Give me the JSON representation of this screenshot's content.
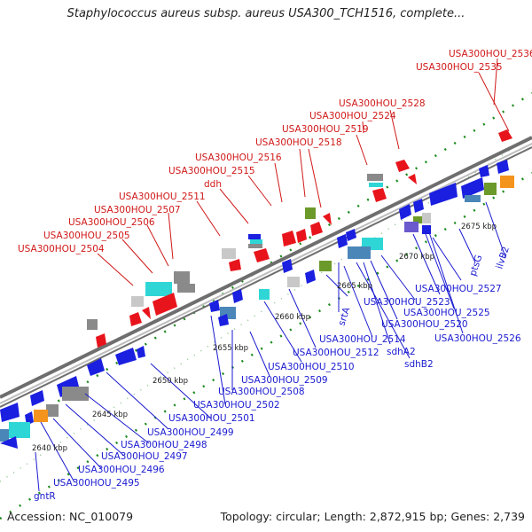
{
  "title": "Staphylococcus aureus subsp. aureus USA300_TCH1516, complete...",
  "footer": {
    "accession": "Accession: NC_010079",
    "summary": "Topology: circular; Length: 2,872,915 bp; Genes: 2,739"
  },
  "colors": {
    "red": "#e8141c",
    "blue": "#1a1fe0",
    "cyan": "#2fd6d6",
    "teal": "#4b86b8",
    "olive": "#6b9a2a",
    "orange": "#f5941d",
    "gray": "#8a8a8a",
    "lightgray": "#c8c8c8",
    "purple": "#6a5acd",
    "tick": "#1b8a1b",
    "redLabel": "#d01818",
    "blueLabel": "#1a1ad0"
  },
  "kbp_labels": [
    "2640 kbp",
    "2645 kbp",
    "2650 kbp",
    "2655 kbp",
    "2660 kbp",
    "2665 kbp",
    "2670 kbp",
    "2675 kbp"
  ],
  "upper_labels": [
    "USA300HOU_2536",
    "USA300HOU_2535",
    "USA300HOU_2528",
    "USA300HOU_2524",
    "USA300HOU_2519",
    "USA300HOU_2518",
    "USA300HOU_2516",
    "USA300HOU_2515",
    "ddh",
    "USA300HOU_2511",
    "USA300HOU_2507",
    "USA300HOU_2506",
    "USA300HOU_2505",
    "USA300HOU_2504"
  ],
  "lower_labels": [
    "ilvB2",
    "ptsG",
    "USA300HOU_2527",
    "USA300HOU_2523",
    "USA300HOU_2525",
    "USA300HOU_2520",
    "USA300HOU_2526",
    "srtA",
    "USA300HOU_2514",
    "sdhA2",
    "sdhB2",
    "USA300HOU_2512",
    "USA300HOU_2510",
    "USA300HOU_2509",
    "USA300HOU_2508",
    "USA300HOU_2502",
    "USA300HOU_2501",
    "USA300HOU_2499",
    "USA300HOU_2498",
    "USA300HOU_2497",
    "USA300HOU_2496",
    "USA300HOU_2495",
    "gntR"
  ]
}
